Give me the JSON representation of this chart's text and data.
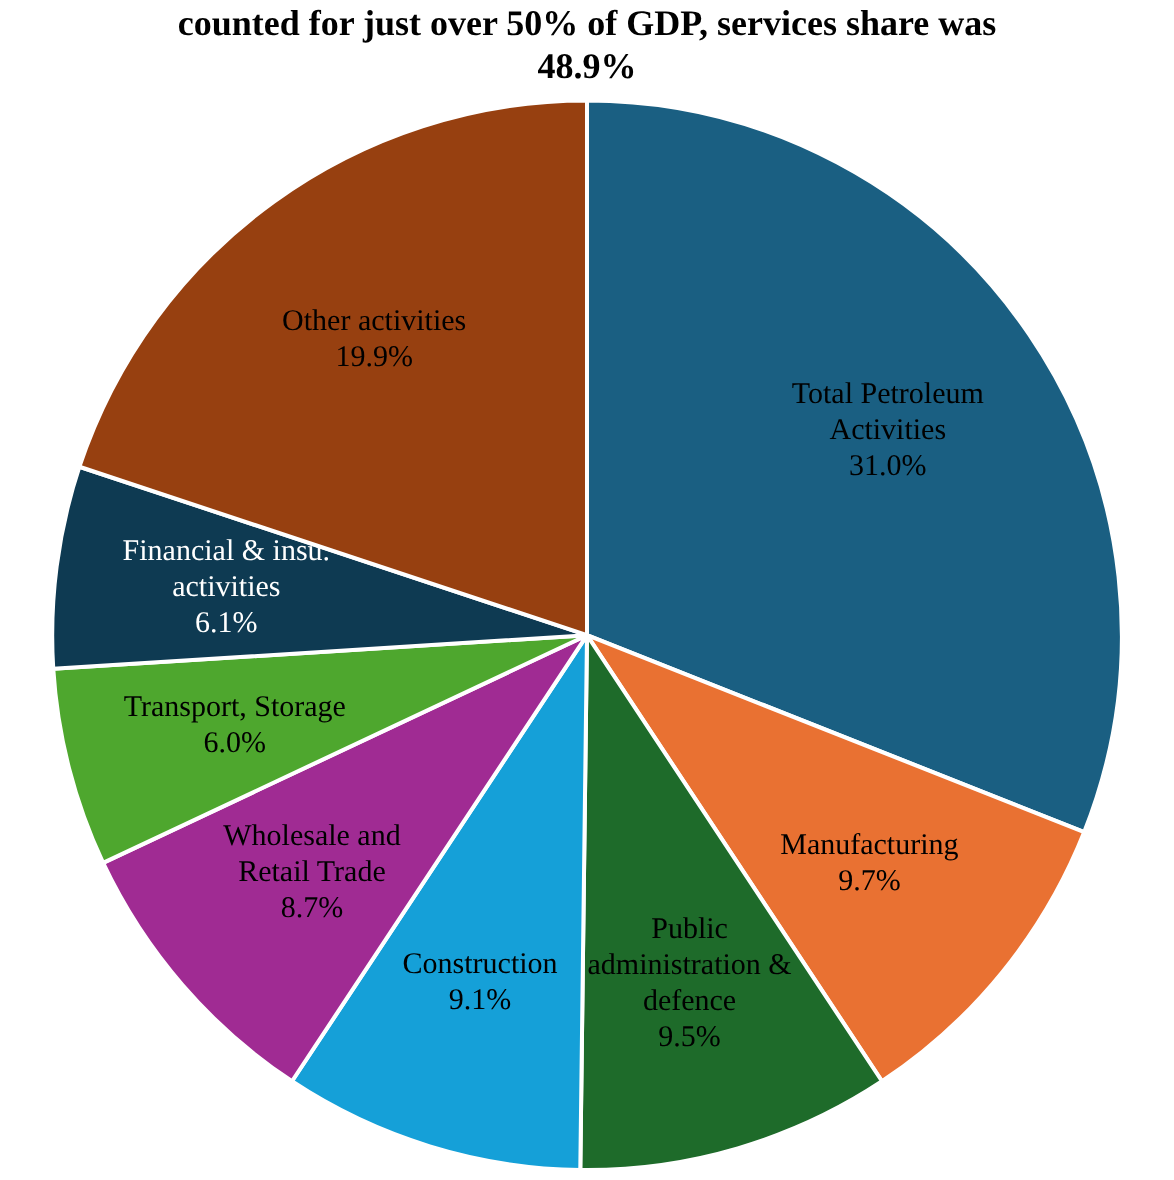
{
  "chart_data": {
    "type": "pie",
    "title": [
      "counted for just over 50% of GDP, services share was",
      "48.9%"
    ],
    "categories": [
      "Total Petroleum Activities",
      "Manufacturing",
      "Public administration & defence",
      "Construction",
      "Wholesale and Retail Trade",
      "Transport, Storage",
      "Financial & insu. activities",
      "Other activities"
    ],
    "values": [
      31.0,
      9.7,
      9.5,
      9.1,
      8.7,
      6.0,
      6.1,
      19.9
    ],
    "value_labels": [
      "31.0%",
      "9.7%",
      "9.5%",
      "9.1%",
      "8.7%",
      "6.0%",
      "6.1%",
      "19.9%"
    ],
    "colors": [
      "#1a5f82",
      "#e97132",
      "#1e6b2a",
      "#15a0d8",
      "#a02b93",
      "#4ea72e",
      "#0e3a52",
      "#974010"
    ],
    "legend": false
  }
}
